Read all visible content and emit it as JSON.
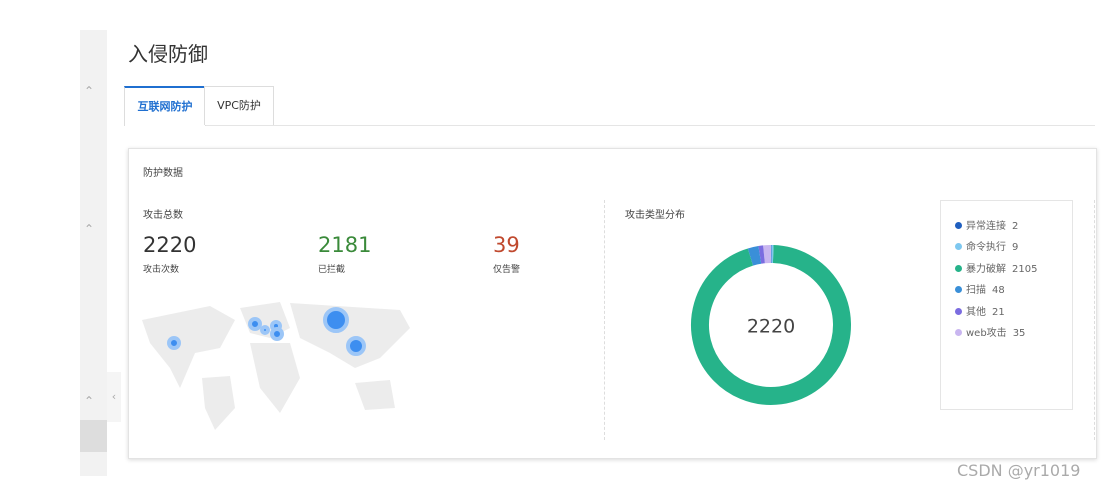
{
  "page": {
    "title": "入侵防御",
    "tabs": [
      "互联网防护",
      "VPC防护"
    ],
    "active_tab": 0
  },
  "card": {
    "title": "防护数据"
  },
  "attack_total": {
    "title": "攻击总数",
    "stats": [
      {
        "value": 2220,
        "label": "攻击次数",
        "color": "#333333"
      },
      {
        "value": 2181,
        "label": "已拦截",
        "color": "#3a8a3a"
      },
      {
        "value": 39,
        "label": "仅告警",
        "color": "#c0492e"
      }
    ]
  },
  "distribution": {
    "type": "donut",
    "title": "攻击类型分布",
    "total": 2220,
    "items": [
      {
        "name": "异常连接",
        "value": 2,
        "color": "#1f5fbf"
      },
      {
        "name": "命令执行",
        "value": 9,
        "color": "#7ec8f0"
      },
      {
        "name": "暴力破解",
        "value": 2105,
        "color": "#26b38a"
      },
      {
        "name": "扫描",
        "value": 48,
        "color": "#3a8fd8"
      },
      {
        "name": "其他",
        "value": 21,
        "color": "#7b6ce0"
      },
      {
        "name": "web攻击",
        "value": 35,
        "color": "#c9b6f0"
      }
    ]
  },
  "watermark": "CSDN @yr1019"
}
